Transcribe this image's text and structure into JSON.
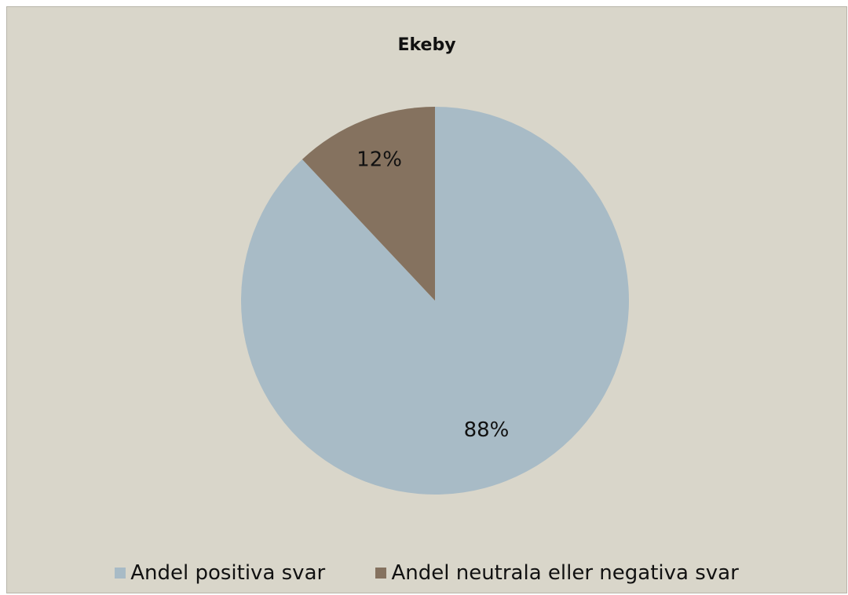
{
  "chart_data": {
    "type": "pie",
    "title": "Ekeby",
    "categories": [
      "Andel positiva svar",
      "Andel neutrala eller negativa svar"
    ],
    "values": [
      88,
      12
    ],
    "data_labels": [
      "88%",
      "12%"
    ],
    "colors": [
      "#a8bbc6",
      "#85725f"
    ],
    "legend_position": "bottom"
  }
}
